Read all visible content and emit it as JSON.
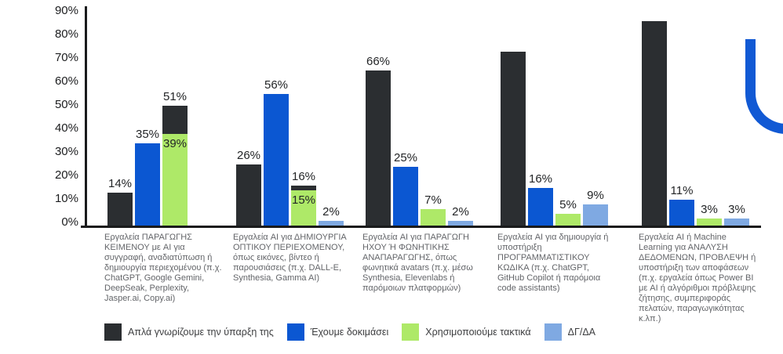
{
  "chart_data": {
    "type": "bar",
    "title": "",
    "xlabel": "",
    "ylabel": "",
    "unit": "%",
    "ylim": [
      0,
      90
    ],
    "ytick_step": 10,
    "grid": false,
    "legend_position": "bottom",
    "series": [
      {
        "id": "know",
        "name": "Απλά γνωρίζουμε την ύπαρξη της",
        "color": "#2B2E31"
      },
      {
        "id": "tried",
        "name": "Έχουμε δοκιμάσει",
        "color": "#0B57D2"
      },
      {
        "id": "regular",
        "name": "Χρησιμοποιούμε τακτικά",
        "color": "#AEE968"
      },
      {
        "id": "dkna",
        "name": "ΔΓ/ΔΑ",
        "color": "#7FA9E2"
      }
    ],
    "groups": [
      {
        "category": "Εργαλεία ΠΑΡΑΓΩΓΗΣ ΚΕΙΜΕΝΟΥ με AI για συγγραφή, αναδιατύπωση ή δημιουργία περιεχομένου (π.χ. ChatGPT, Google Gemini, DeepSeak, Perplexity, Jasper.ai, Copy.ai)",
        "bars": [
          {
            "series": "know",
            "value": 14,
            "label": "14%"
          },
          {
            "series": "tried",
            "value": 35,
            "label": "35%"
          },
          {
            "series": "regular",
            "value": 39,
            "label": "39%",
            "stack": {
              "series": "know",
              "value": 51,
              "label": "51%"
            }
          },
          {
            "series": "dkna",
            "value": 0,
            "label": ""
          }
        ]
      },
      {
        "category": "Εργαλεία AI για ΔΗΜΙΟΥΡΓΙΑ ΟΠΤΙΚΟΥ ΠΕΡΙΕΧΟΜΕΝΟΥ, όπως εικόνες, βίντεο ή παρουσιάσεις (π.χ. DALL-E, Synthesia, Gamma AI)",
        "bars": [
          {
            "series": "know",
            "value": 26,
            "label": "26%"
          },
          {
            "series": "tried",
            "value": 56,
            "label": "56%"
          },
          {
            "series": "regular",
            "value": 15,
            "label": "15%",
            "stack": {
              "series": "know",
              "value": 16,
              "label": "16%"
            }
          },
          {
            "series": "dkna",
            "value": 2,
            "label": "2%"
          }
        ]
      },
      {
        "category": "Εργαλεία AI για ΠΑΡΑΓΩΓΗ ΗΧΟΥ Ή ΦΩΝΗΤΙΚΗΣ ΑΝΑΠΑΡΑΓΩΓΗΣ, όπως φωνητικά avatars (π.χ. μέσω Synthesia, Elevenlabs ή παρόμοιων πλατφορμών)",
        "bars": [
          {
            "series": "know",
            "value": 66,
            "label": "66%"
          },
          {
            "series": "tried",
            "value": 25,
            "label": "25%"
          },
          {
            "series": "regular",
            "value": 7,
            "label": "7%"
          },
          {
            "series": "dkna",
            "value": 2,
            "label": "2%"
          }
        ]
      },
      {
        "category": "Εργαλεία AI για δημιουργία ή υποστήριξη ΠΡΟΓΡΑΜΜΑΤΙΣΤΙΚΟΥ ΚΩΔΙΚΑ (π.χ. ChatGPT, GitHub Copilot ή παρόμοια code assistants)",
        "bars": [
          {
            "series": "know",
            "value": 74,
            "label": "",
            "estimated": true
          },
          {
            "series": "tried",
            "value": 16,
            "label": "16%"
          },
          {
            "series": "regular",
            "value": 5,
            "label": "5%"
          },
          {
            "series": "dkna",
            "value": 9,
            "label": "9%"
          }
        ]
      },
      {
        "category": "Εργαλεία AI ή Machine Learning για ΑΝΑΛΥΣΗ ΔΕΔΟΜΕΝΩΝ, ΠΡΟΒΛΕΨΗ ή υποστήριξη των αποφάσεων (π.χ. εργαλεία όπως Power BI με AI ή αλγόριθμοι πρόβλεψης ζήτησης, συμπεριφοράς πελατών, παραγωγικότητας κ.λπ.)",
        "bars": [
          {
            "series": "know",
            "value": 87,
            "label": "",
            "estimated": true
          },
          {
            "series": "tried",
            "value": 11,
            "label": "11%"
          },
          {
            "series": "regular",
            "value": 3,
            "label": "3%"
          },
          {
            "series": "dkna",
            "value": 3,
            "label": "3%"
          }
        ]
      }
    ]
  },
  "decor": {
    "blue_curve_color": "#1159D4"
  }
}
